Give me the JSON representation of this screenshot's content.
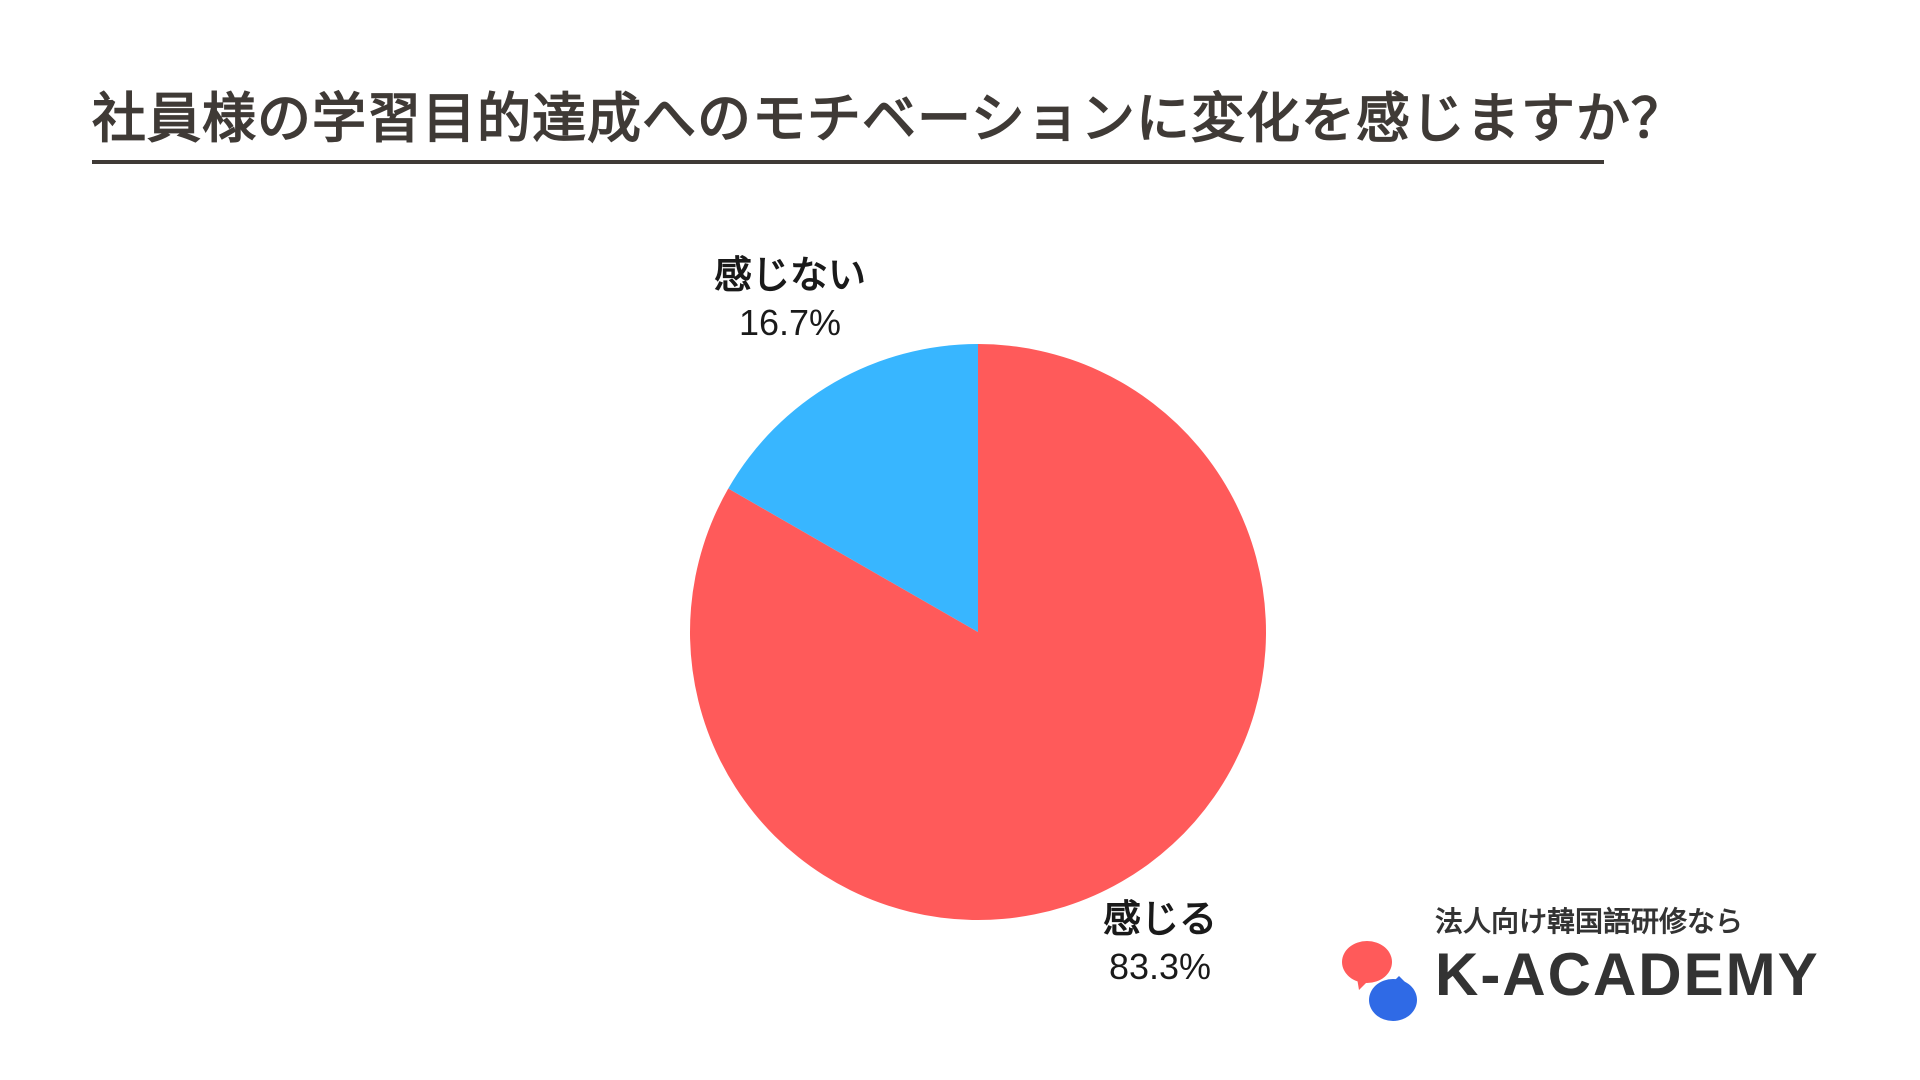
{
  "chart_data": {
    "type": "pie",
    "title": "社員様の学習目的達成へのモチベーションに変化を感じますか？",
    "slices": [
      {
        "label": "感じる",
        "value": 83.3,
        "display": "83.3%",
        "color": "#ff5a5a"
      },
      {
        "label": "感じない",
        "value": 16.7,
        "display": "16.7%",
        "color": "#38b6ff"
      }
    ],
    "legend": "none"
  },
  "brand": {
    "tagline": "法人向け韓国語研修なら",
    "name": "K-ACADEMY",
    "logo_icon": "speech-bubbles-icon",
    "colors": {
      "red": "#ff5a5a",
      "blue": "#2f6ae6"
    }
  }
}
